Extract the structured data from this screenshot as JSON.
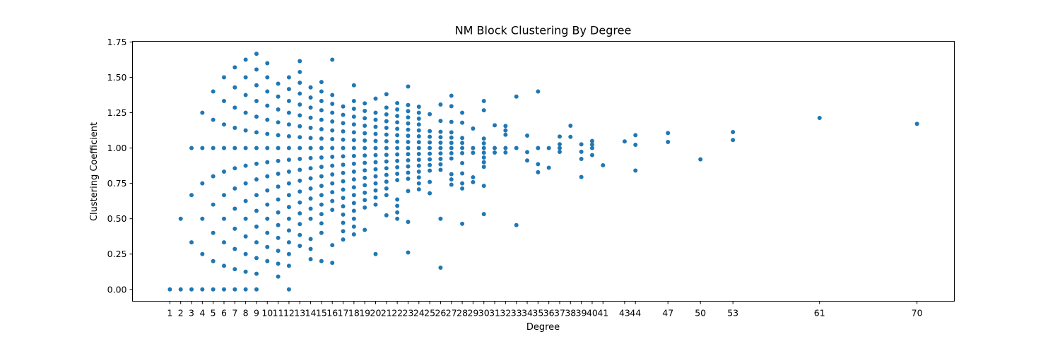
{
  "chart_data": {
    "type": "scatter",
    "title": "NM Block Clustering By Degree",
    "xlabel": "Degree",
    "ylabel": "Clustering Coefficient",
    "xlim": [
      -2.45,
      73.45
    ],
    "ylim": [
      -0.0835,
      1.755
    ],
    "x_ticks": [
      1,
      2,
      3,
      4,
      5,
      6,
      7,
      8,
      9,
      10,
      11,
      12,
      13,
      14,
      15,
      16,
      17,
      18,
      19,
      20,
      21,
      22,
      23,
      24,
      25,
      26,
      27,
      28,
      29,
      30,
      31,
      32,
      33,
      34,
      35,
      36,
      37,
      38,
      39,
      40,
      41,
      43,
      44,
      47,
      50,
      53,
      61,
      70
    ],
    "y_ticks": [
      "0.00",
      "0.25",
      "0.50",
      "0.75",
      "1.00",
      "1.25",
      "1.50",
      "1.75"
    ],
    "grid": false,
    "marker_color": "#1f77b4",
    "points": [
      [
        1,
        0
      ],
      [
        2,
        0
      ],
      [
        3,
        0
      ],
      [
        4,
        0
      ],
      [
        5,
        0
      ],
      [
        6,
        0
      ],
      [
        7,
        0
      ],
      [
        8,
        0
      ],
      [
        9,
        0
      ],
      [
        12,
        0
      ],
      [
        2,
        0.5
      ],
      [
        3,
        0.333
      ],
      [
        3,
        0.667
      ],
      [
        3,
        1.0
      ],
      [
        4,
        0.25
      ],
      [
        4,
        0.5
      ],
      [
        4,
        0.75
      ],
      [
        4,
        1.0
      ],
      [
        4,
        1.25
      ],
      [
        5,
        0.2
      ],
      [
        5,
        0.4
      ],
      [
        5,
        0.6
      ],
      [
        5,
        0.8
      ],
      [
        5,
        1.0
      ],
      [
        5,
        1.2
      ],
      [
        5,
        1.4
      ],
      [
        6,
        0.167
      ],
      [
        6,
        0.333
      ],
      [
        6,
        0.5
      ],
      [
        6,
        0.667
      ],
      [
        6,
        0.833
      ],
      [
        6,
        1.0
      ],
      [
        6,
        1.167
      ],
      [
        6,
        1.333
      ],
      [
        6,
        1.5
      ],
      [
        7,
        0.143
      ],
      [
        7,
        0.286
      ],
      [
        7,
        0.429
      ],
      [
        7,
        0.571
      ],
      [
        7,
        0.714
      ],
      [
        7,
        0.857
      ],
      [
        7,
        1.0
      ],
      [
        7,
        1.143
      ],
      [
        7,
        1.286
      ],
      [
        7,
        1.429
      ],
      [
        7,
        1.571
      ],
      [
        8,
        0.125
      ],
      [
        8,
        0.25
      ],
      [
        8,
        0.375
      ],
      [
        8,
        0.5
      ],
      [
        8,
        0.625
      ],
      [
        8,
        0.75
      ],
      [
        8,
        0.875
      ],
      [
        8,
        1.0
      ],
      [
        8,
        1.125
      ],
      [
        8,
        1.25
      ],
      [
        8,
        1.375
      ],
      [
        8,
        1.5
      ],
      [
        8,
        1.625
      ],
      [
        9,
        0.111
      ],
      [
        9,
        0.222
      ],
      [
        9,
        0.333
      ],
      [
        9,
        0.444
      ],
      [
        9,
        0.556
      ],
      [
        9,
        0.667
      ],
      [
        9,
        0.778
      ],
      [
        9,
        0.889
      ],
      [
        9,
        1.0
      ],
      [
        9,
        1.111
      ],
      [
        9,
        1.222
      ],
      [
        9,
        1.333
      ],
      [
        9,
        1.444
      ],
      [
        9,
        1.556
      ],
      [
        9,
        1.667
      ],
      [
        10,
        0.2
      ],
      [
        10,
        0.3
      ],
      [
        10,
        0.4
      ],
      [
        10,
        0.5
      ],
      [
        10,
        0.6
      ],
      [
        10,
        0.7
      ],
      [
        10,
        0.8
      ],
      [
        10,
        0.9
      ],
      [
        10,
        1.0
      ],
      [
        10,
        1.1
      ],
      [
        10,
        1.2
      ],
      [
        10,
        1.3
      ],
      [
        10,
        1.4
      ],
      [
        10,
        1.5
      ],
      [
        10,
        1.6
      ],
      [
        11,
        0.091
      ],
      [
        11,
        0.182
      ],
      [
        11,
        0.273
      ],
      [
        11,
        0.364
      ],
      [
        11,
        0.455
      ],
      [
        11,
        0.545
      ],
      [
        11,
        0.636
      ],
      [
        11,
        0.727
      ],
      [
        11,
        0.818
      ],
      [
        11,
        0.909
      ],
      [
        11,
        1.0
      ],
      [
        11,
        1.091
      ],
      [
        11,
        1.182
      ],
      [
        11,
        1.273
      ],
      [
        11,
        1.364
      ],
      [
        11,
        1.455
      ],
      [
        12,
        0.167
      ],
      [
        12,
        0.25
      ],
      [
        12,
        0.333
      ],
      [
        12,
        0.417
      ],
      [
        12,
        0.5
      ],
      [
        12,
        0.583
      ],
      [
        12,
        0.667
      ],
      [
        12,
        0.75
      ],
      [
        12,
        0.833
      ],
      [
        12,
        0.917
      ],
      [
        12,
        1.0
      ],
      [
        12,
        1.083
      ],
      [
        12,
        1.167
      ],
      [
        12,
        1.25
      ],
      [
        12,
        1.333
      ],
      [
        12,
        1.417
      ],
      [
        12,
        1.5
      ],
      [
        13,
        0.308
      ],
      [
        13,
        0.385
      ],
      [
        13,
        0.462
      ],
      [
        13,
        0.538
      ],
      [
        13,
        0.615
      ],
      [
        13,
        0.692
      ],
      [
        13,
        0.769
      ],
      [
        13,
        0.846
      ],
      [
        13,
        0.923
      ],
      [
        13,
        1.0
      ],
      [
        13,
        1.077
      ],
      [
        13,
        1.154
      ],
      [
        13,
        1.231
      ],
      [
        13,
        1.308
      ],
      [
        13,
        1.385
      ],
      [
        13,
        1.462
      ],
      [
        13,
        1.538
      ],
      [
        13,
        1.615
      ],
      [
        14,
        0.214
      ],
      [
        14,
        0.286
      ],
      [
        14,
        0.357
      ],
      [
        14,
        0.5
      ],
      [
        14,
        0.571
      ],
      [
        14,
        0.643
      ],
      [
        14,
        0.714
      ],
      [
        14,
        0.786
      ],
      [
        14,
        0.857
      ],
      [
        14,
        0.929
      ],
      [
        14,
        1.0
      ],
      [
        14,
        1.071
      ],
      [
        14,
        1.143
      ],
      [
        14,
        1.214
      ],
      [
        14,
        1.286
      ],
      [
        14,
        1.357
      ],
      [
        14,
        1.429
      ],
      [
        15,
        0.2
      ],
      [
        15,
        0.4
      ],
      [
        15,
        0.467
      ],
      [
        15,
        0.533
      ],
      [
        15,
        0.6
      ],
      [
        15,
        0.667
      ],
      [
        15,
        0.733
      ],
      [
        15,
        0.8
      ],
      [
        15,
        0.867
      ],
      [
        15,
        0.933
      ],
      [
        15,
        1.0
      ],
      [
        15,
        1.067
      ],
      [
        15,
        1.133
      ],
      [
        15,
        1.2
      ],
      [
        15,
        1.267
      ],
      [
        15,
        1.333
      ],
      [
        15,
        1.4
      ],
      [
        15,
        1.467
      ],
      [
        16,
        0.188
      ],
      [
        16,
        0.313
      ],
      [
        16,
        0.563
      ],
      [
        16,
        0.625
      ],
      [
        16,
        0.688
      ],
      [
        16,
        0.75
      ],
      [
        16,
        0.813
      ],
      [
        16,
        0.875
      ],
      [
        16,
        0.938
      ],
      [
        16,
        1.0
      ],
      [
        16,
        1.063
      ],
      [
        16,
        1.125
      ],
      [
        16,
        1.188
      ],
      [
        16,
        1.25
      ],
      [
        16,
        1.313
      ],
      [
        16,
        1.375
      ],
      [
        16,
        1.625
      ],
      [
        17,
        0.353
      ],
      [
        17,
        0.412
      ],
      [
        17,
        0.471
      ],
      [
        17,
        0.529
      ],
      [
        17,
        0.588
      ],
      [
        17,
        0.647
      ],
      [
        17,
        0.706
      ],
      [
        17,
        0.765
      ],
      [
        17,
        0.824
      ],
      [
        17,
        0.882
      ],
      [
        17,
        0.941
      ],
      [
        17,
        1.0
      ],
      [
        17,
        1.059
      ],
      [
        17,
        1.118
      ],
      [
        17,
        1.176
      ],
      [
        17,
        1.235
      ],
      [
        17,
        1.294
      ],
      [
        18,
        0.389
      ],
      [
        18,
        0.444
      ],
      [
        18,
        0.5
      ],
      [
        18,
        0.556
      ],
      [
        18,
        0.611
      ],
      [
        18,
        0.667
      ],
      [
        18,
        0.722
      ],
      [
        18,
        0.778
      ],
      [
        18,
        0.833
      ],
      [
        18,
        0.889
      ],
      [
        18,
        0.944
      ],
      [
        18,
        1.0
      ],
      [
        18,
        1.056
      ],
      [
        18,
        1.111
      ],
      [
        18,
        1.167
      ],
      [
        18,
        1.222
      ],
      [
        18,
        1.278
      ],
      [
        18,
        1.333
      ],
      [
        18,
        1.444
      ],
      [
        19,
        0.421
      ],
      [
        19,
        0.579
      ],
      [
        19,
        0.632
      ],
      [
        19,
        0.684
      ],
      [
        19,
        0.737
      ],
      [
        19,
        0.789
      ],
      [
        19,
        0.842
      ],
      [
        19,
        0.895
      ],
      [
        19,
        0.947
      ],
      [
        19,
        1.0
      ],
      [
        19,
        1.053
      ],
      [
        19,
        1.105
      ],
      [
        19,
        1.158
      ],
      [
        19,
        1.211
      ],
      [
        19,
        1.263
      ],
      [
        19,
        1.316
      ],
      [
        20,
        0.25
      ],
      [
        20,
        0.6
      ],
      [
        20,
        0.65
      ],
      [
        20,
        0.7
      ],
      [
        20,
        0.75
      ],
      [
        20,
        0.8
      ],
      [
        20,
        0.85
      ],
      [
        20,
        0.9
      ],
      [
        20,
        0.95
      ],
      [
        20,
        1.0
      ],
      [
        20,
        1.05
      ],
      [
        20,
        1.1
      ],
      [
        20,
        1.15
      ],
      [
        20,
        1.2
      ],
      [
        20,
        1.25
      ],
      [
        20,
        1.35
      ],
      [
        21,
        0.524
      ],
      [
        21,
        0.667
      ],
      [
        21,
        0.714
      ],
      [
        21,
        0.762
      ],
      [
        21,
        0.81
      ],
      [
        21,
        0.857
      ],
      [
        21,
        0.905
      ],
      [
        21,
        0.952
      ],
      [
        21,
        1.0
      ],
      [
        21,
        1.048
      ],
      [
        21,
        1.095
      ],
      [
        21,
        1.143
      ],
      [
        21,
        1.19
      ],
      [
        21,
        1.238
      ],
      [
        21,
        1.286
      ],
      [
        21,
        1.381
      ],
      [
        22,
        0.5
      ],
      [
        22,
        0.545
      ],
      [
        22,
        0.591
      ],
      [
        22,
        0.636
      ],
      [
        22,
        0.773
      ],
      [
        22,
        0.818
      ],
      [
        22,
        0.864
      ],
      [
        22,
        0.909
      ],
      [
        22,
        0.955
      ],
      [
        22,
        1.0
      ],
      [
        22,
        1.045
      ],
      [
        22,
        1.091
      ],
      [
        22,
        1.136
      ],
      [
        22,
        1.182
      ],
      [
        22,
        1.227
      ],
      [
        22,
        1.273
      ],
      [
        22,
        1.318
      ],
      [
        23,
        0.261
      ],
      [
        23,
        0.478
      ],
      [
        23,
        0.696
      ],
      [
        23,
        0.783
      ],
      [
        23,
        0.826
      ],
      [
        23,
        0.87
      ],
      [
        23,
        0.913
      ],
      [
        23,
        0.957
      ],
      [
        23,
        1.0
      ],
      [
        23,
        1.043
      ],
      [
        23,
        1.087
      ],
      [
        23,
        1.13
      ],
      [
        23,
        1.174
      ],
      [
        23,
        1.217
      ],
      [
        23,
        1.261
      ],
      [
        23,
        1.304
      ],
      [
        23,
        1.435
      ],
      [
        24,
        0.708
      ],
      [
        24,
        0.75
      ],
      [
        24,
        0.792
      ],
      [
        24,
        0.833
      ],
      [
        24,
        0.875
      ],
      [
        24,
        0.917
      ],
      [
        24,
        0.958
      ],
      [
        24,
        1.0
      ],
      [
        24,
        1.042
      ],
      [
        24,
        1.083
      ],
      [
        24,
        1.125
      ],
      [
        24,
        1.167
      ],
      [
        24,
        1.208
      ],
      [
        24,
        1.25
      ],
      [
        24,
        1.292
      ],
      [
        25,
        0.68
      ],
      [
        25,
        0.76
      ],
      [
        25,
        0.84
      ],
      [
        25,
        0.88
      ],
      [
        25,
        0.92
      ],
      [
        25,
        0.96
      ],
      [
        25,
        1.0
      ],
      [
        25,
        1.04
      ],
      [
        25,
        1.08
      ],
      [
        25,
        1.12
      ],
      [
        25,
        1.24
      ],
      [
        26,
        0.154
      ],
      [
        26,
        0.5
      ],
      [
        26,
        0.846
      ],
      [
        26,
        0.885
      ],
      [
        26,
        0.923
      ],
      [
        26,
        0.962
      ],
      [
        26,
        1.0
      ],
      [
        26,
        1.038
      ],
      [
        26,
        1.077
      ],
      [
        26,
        1.115
      ],
      [
        26,
        1.192
      ],
      [
        26,
        1.308
      ],
      [
        27,
        0.741
      ],
      [
        27,
        0.778
      ],
      [
        27,
        0.815
      ],
      [
        27,
        0.926
      ],
      [
        27,
        0.963
      ],
      [
        27,
        1.0
      ],
      [
        27,
        1.037
      ],
      [
        27,
        1.074
      ],
      [
        27,
        1.111
      ],
      [
        27,
        1.185
      ],
      [
        27,
        1.296
      ],
      [
        27,
        1.37
      ],
      [
        28,
        0.464
      ],
      [
        28,
        0.714
      ],
      [
        28,
        0.75
      ],
      [
        28,
        0.821
      ],
      [
        28,
        0.893
      ],
      [
        28,
        0.964
      ],
      [
        28,
        1.0
      ],
      [
        28,
        1.036
      ],
      [
        28,
        1.071
      ],
      [
        28,
        1.179
      ],
      [
        28,
        1.25
      ],
      [
        29,
        0.759
      ],
      [
        29,
        0.793
      ],
      [
        29,
        0.966
      ],
      [
        29,
        1.0
      ],
      [
        29,
        1.138
      ],
      [
        30,
        0.533
      ],
      [
        30,
        0.733
      ],
      [
        30,
        0.867
      ],
      [
        30,
        0.9
      ],
      [
        30,
        0.933
      ],
      [
        30,
        0.967
      ],
      [
        30,
        1.0
      ],
      [
        30,
        1.033
      ],
      [
        30,
        1.067
      ],
      [
        30,
        1.267
      ],
      [
        30,
        1.333
      ],
      [
        31,
        0.968
      ],
      [
        31,
        1.0
      ],
      [
        31,
        1.161
      ],
      [
        32,
        0.969
      ],
      [
        32,
        1.0
      ],
      [
        32,
        1.094
      ],
      [
        32,
        1.125
      ],
      [
        32,
        1.156
      ],
      [
        33,
        0.455
      ],
      [
        33,
        1.0
      ],
      [
        33,
        1.364
      ],
      [
        34,
        0.912
      ],
      [
        34,
        0.971
      ],
      [
        34,
        1.088
      ],
      [
        35,
        0.829
      ],
      [
        35,
        0.886
      ],
      [
        35,
        1.0
      ],
      [
        35,
        1.4
      ],
      [
        36,
        0.861
      ],
      [
        36,
        1.0
      ],
      [
        37,
        0.973
      ],
      [
        37,
        1.0
      ],
      [
        37,
        1.027
      ],
      [
        37,
        1.081
      ],
      [
        38,
        1.079
      ],
      [
        38,
        1.158
      ],
      [
        39,
        0.795
      ],
      [
        39,
        0.923
      ],
      [
        39,
        0.974
      ],
      [
        39,
        1.026
      ],
      [
        40,
        0.95
      ],
      [
        40,
        1.0
      ],
      [
        40,
        1.025
      ],
      [
        40,
        1.05
      ],
      [
        41,
        0.878
      ],
      [
        43,
        1.047
      ],
      [
        44,
        0.841
      ],
      [
        44,
        1.023
      ],
      [
        44,
        1.091
      ],
      [
        47,
        1.043
      ],
      [
        47,
        1.106
      ],
      [
        50,
        0.92
      ],
      [
        53,
        1.057
      ],
      [
        53,
        1.113
      ],
      [
        61,
        1.213
      ],
      [
        70,
        1.171
      ]
    ]
  }
}
